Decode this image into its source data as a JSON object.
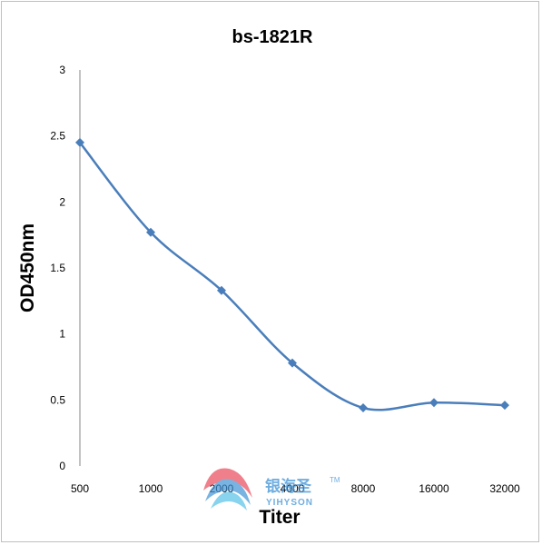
{
  "chart_data": {
    "type": "line",
    "title": "bs-1821R",
    "xlabel": "Titer",
    "ylabel": "OD450nm",
    "categories": [
      "500",
      "1000",
      "2000",
      "4000",
      "8000",
      "16000",
      "32000"
    ],
    "series": [
      {
        "values": [
          2.45,
          1.77,
          1.33,
          0.78,
          0.44,
          0.48,
          0.46
        ]
      }
    ],
    "y_ticks": [
      "0",
      "0.5",
      "1",
      "1.5",
      "2",
      "2.5",
      "3"
    ],
    "ylim": [
      0,
      3
    ],
    "grid": false,
    "legend": "none",
    "line_color": "#4a7ebb",
    "marker": "diamond"
  },
  "watermark": {
    "brand_cn": "银海圣",
    "brand_en": "YIHYSON",
    "trademark": "TM"
  }
}
